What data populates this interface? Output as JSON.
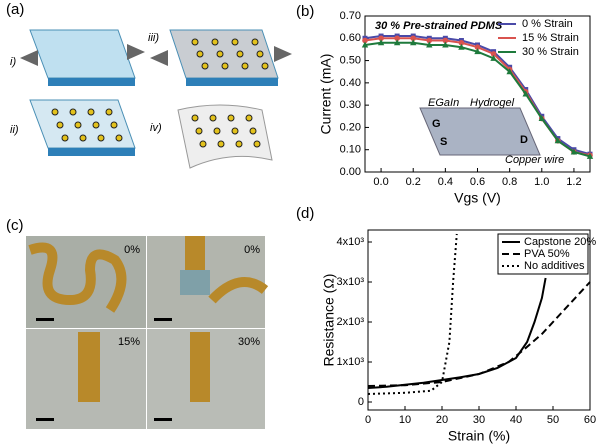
{
  "panel_labels": [
    "(a)",
    "(b)",
    "(c)",
    "(d)"
  ],
  "diagram": {
    "steps": [
      "i)",
      "ii)",
      "iii)",
      "iv)"
    ]
  },
  "photos": {
    "labels": [
      "0%",
      "0%",
      "15%",
      "30%"
    ]
  },
  "chart_data": [
    {
      "type": "line",
      "annotation": "30 % Pre-strained PDMS",
      "xlabel": "Vgs (V)",
      "ylabel": "Current (mA)",
      "x": [
        -0.1,
        0,
        0.1,
        0.2,
        0.3,
        0.4,
        0.5,
        0.6,
        0.7,
        0.8,
        0.9,
        1.0,
        1.1,
        1.2,
        1.3
      ],
      "series": [
        {
          "name": "0 % Strain",
          "color": "#4a4aa8",
          "marker": "square",
          "values": [
            0.6,
            0.61,
            0.61,
            0.61,
            0.6,
            0.6,
            0.59,
            0.57,
            0.54,
            0.47,
            0.37,
            0.25,
            0.15,
            0.1,
            0.08
          ]
        },
        {
          "name": "15 % Strain",
          "color": "#d9534f",
          "marker": "circle",
          "values": [
            0.59,
            0.6,
            0.6,
            0.6,
            0.59,
            0.59,
            0.58,
            0.56,
            0.53,
            0.46,
            0.36,
            0.24,
            0.14,
            0.09,
            0.075
          ]
        },
        {
          "name": "30 % Strain",
          "color": "#1e7a3c",
          "marker": "triangle",
          "values": [
            0.57,
            0.58,
            0.58,
            0.58,
            0.57,
            0.57,
            0.56,
            0.54,
            0.51,
            0.45,
            0.35,
            0.24,
            0.14,
            0.09,
            0.07
          ]
        }
      ],
      "inset_labels": [
        "EGaIn",
        "Hydrogel",
        "G",
        "S",
        "D",
        "Copper wire"
      ],
      "xlim": [
        -0.1,
        1.3
      ],
      "xticks": [
        {
          "value": 0,
          "label": "0.0"
        },
        0.2,
        0.4,
        0.6,
        0.8,
        {
          "value": 1,
          "label": "1.0"
        },
        1.2
      ],
      "ylim": [
        0,
        0.7
      ],
      "yticks": [
        {
          "value": 0,
          "label": "0.00"
        },
        {
          "value": 0.1,
          "label": "0.10"
        },
        {
          "value": 0.2,
          "label": "0.20"
        },
        {
          "value": 0.3,
          "label": "0.30"
        },
        {
          "value": 0.4,
          "label": "0.40"
        },
        {
          "value": 0.5,
          "label": "0.50"
        },
        {
          "value": 0.6,
          "label": "0.60"
        },
        {
          "value": 0.7,
          "label": "0.70"
        }
      ]
    },
    {
      "type": "line",
      "xlabel": "Strain (%)",
      "ylabel": "Resistance (Ω)",
      "series": [
        {
          "name": "Capstone 20%",
          "color": "#000000",
          "style": "solid",
          "x": [
            0,
            5,
            10,
            15,
            20,
            25,
            30,
            35,
            40,
            43,
            45,
            47,
            48
          ],
          "values": [
            350,
            380,
            430,
            480,
            550,
            620,
            700,
            850,
            1100,
            1500,
            2000,
            2600,
            3100
          ]
        },
        {
          "name": "PVA 50%",
          "color": "#000000",
          "style": "dashed",
          "x": [
            0,
            10,
            20,
            30,
            38,
            42,
            47,
            52,
            57,
            60
          ],
          "values": [
            400,
            420,
            500,
            700,
            1000,
            1300,
            1700,
            2200,
            2700,
            3000
          ]
        },
        {
          "name": "No additives",
          "color": "#000000",
          "style": "dotted",
          "x": [
            0,
            10,
            17,
            20,
            22,
            23,
            24
          ],
          "values": [
            200,
            230,
            280,
            500,
            1500,
            3000,
            4200
          ]
        }
      ],
      "xlim": [
        0,
        60
      ],
      "xticks": [
        0,
        10,
        20,
        30,
        40,
        50,
        60
      ],
      "ylim": [
        -200,
        4300
      ],
      "yticks": [
        0,
        {
          "value": 1000,
          "label": "1x10³"
        },
        {
          "value": 2000,
          "label": "2x10³"
        },
        {
          "value": 3000,
          "label": "3x10³"
        },
        {
          "value": 4000,
          "label": "4x10³"
        }
      ]
    }
  ]
}
